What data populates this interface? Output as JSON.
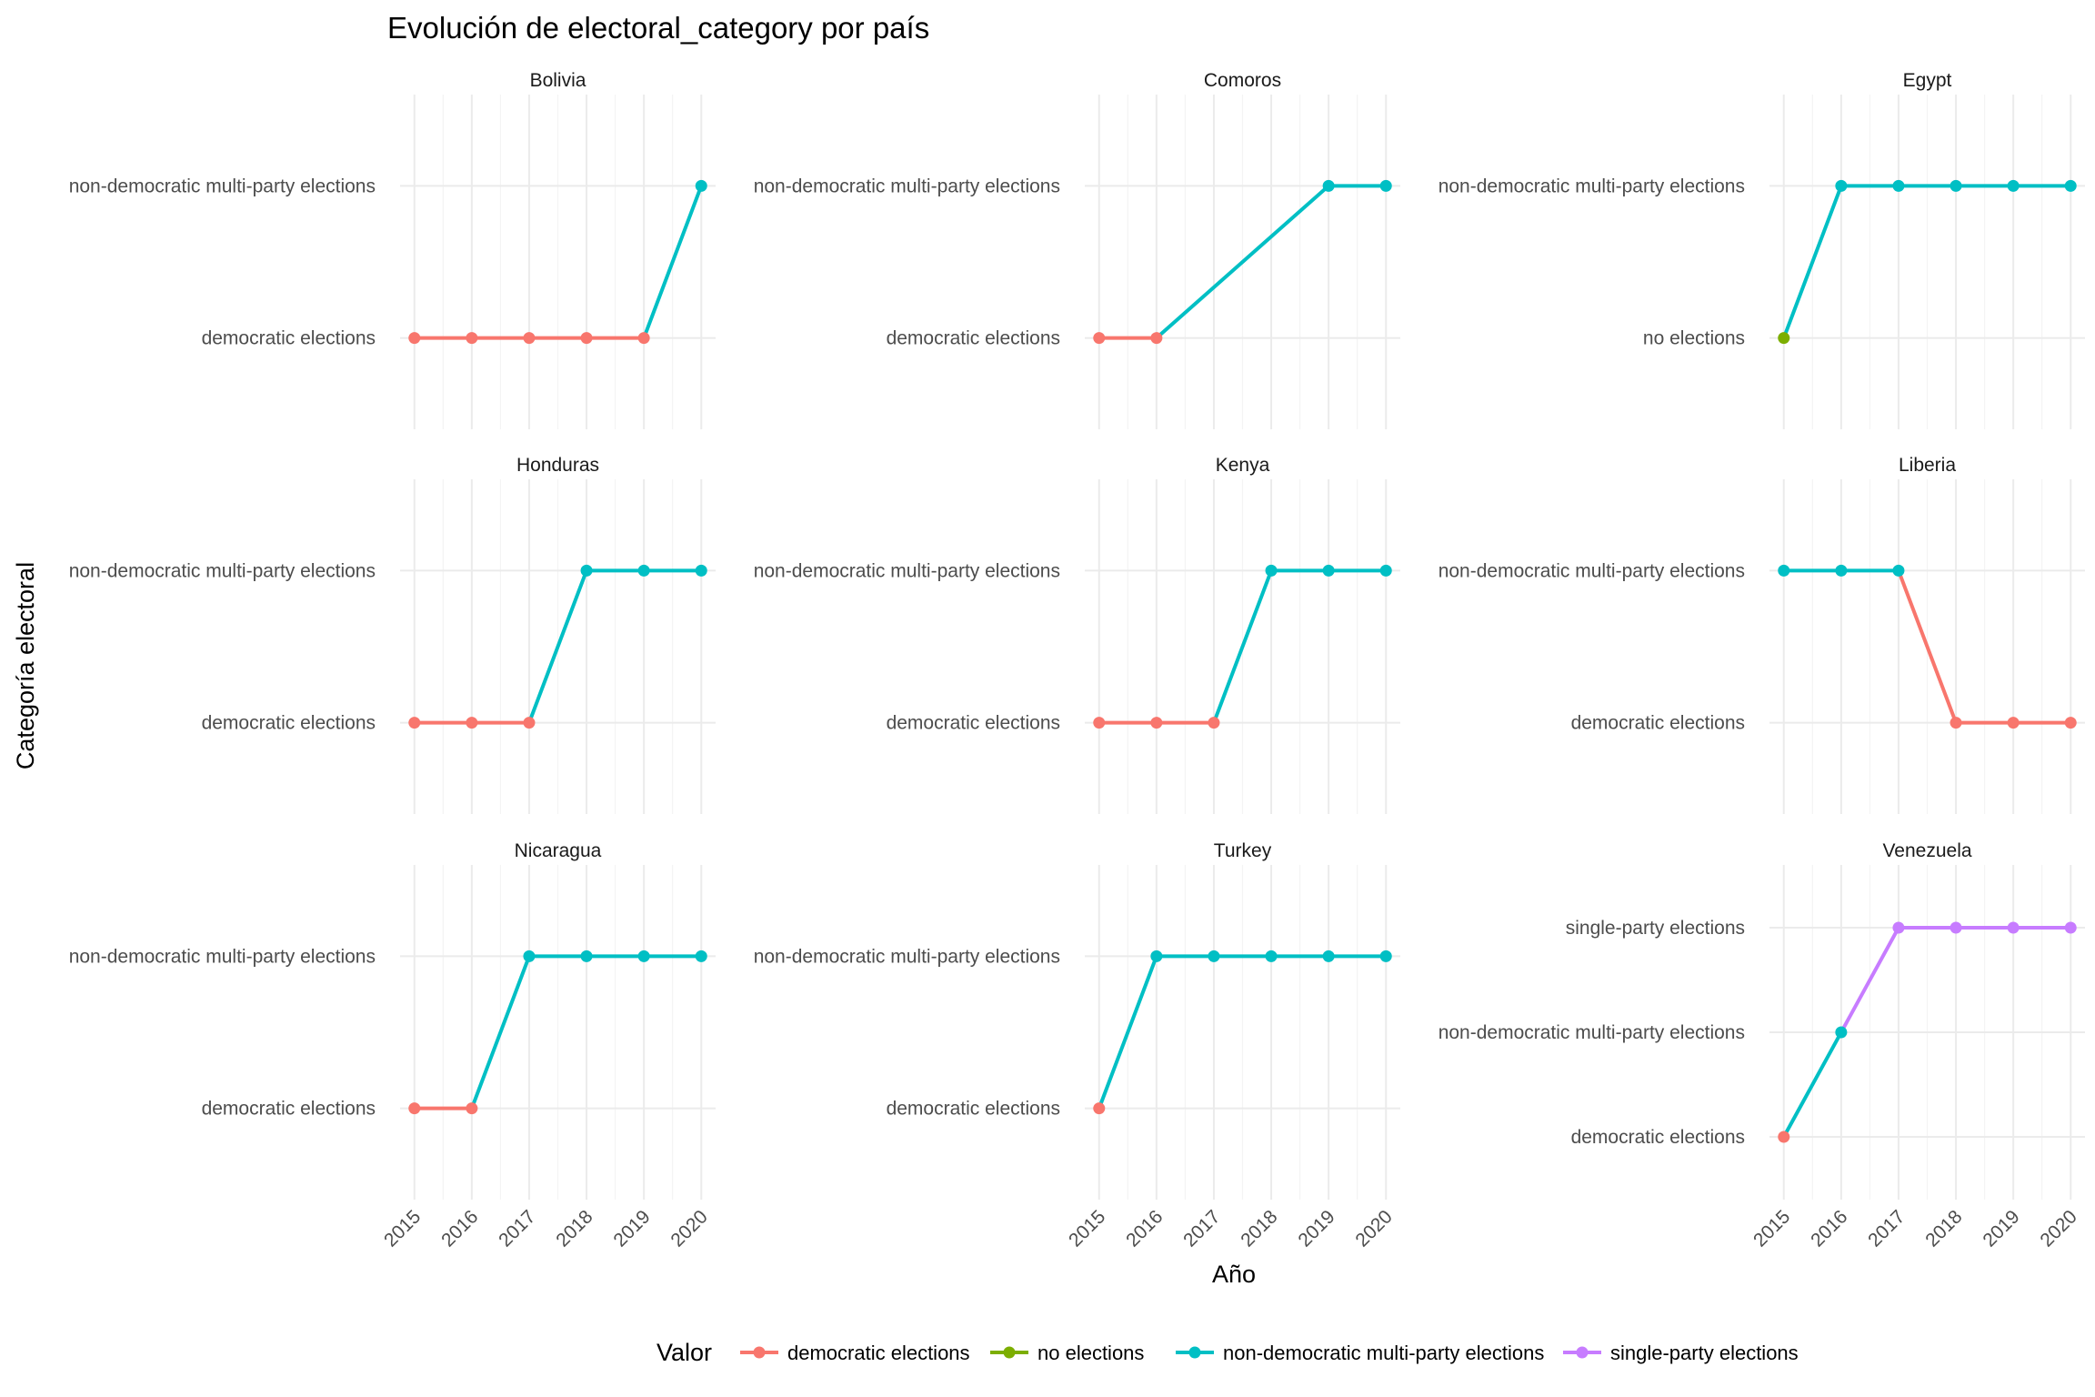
{
  "chart_data": {
    "type": "line",
    "title": "Evolución de electoral_category por país",
    "xlabel": "Año",
    "ylabel": "Categoría electoral",
    "x": [
      2015,
      2016,
      2017,
      2018,
      2019,
      2020
    ],
    "grid": true,
    "legend": {
      "title": "Valor",
      "position": "bottom",
      "entries": [
        {
          "label": "democratic elections",
          "color": "#F8766D"
        },
        {
          "label": "no elections",
          "color": "#7CAE00"
        },
        {
          "label": "non-democratic multi-party elections",
          "color": "#00BFC4"
        },
        {
          "label": "single-party elections",
          "color": "#C77CFF"
        }
      ]
    },
    "panels": [
      {
        "country": "Bolivia",
        "categories": [
          "democratic elections",
          "non-democratic multi-party elections"
        ],
        "values": [
          "democratic elections",
          "democratic elections",
          "democratic elections",
          "democratic elections",
          "democratic elections",
          "non-democratic multi-party elections"
        ]
      },
      {
        "country": "Comoros",
        "categories": [
          "democratic elections",
          "non-democratic multi-party elections"
        ],
        "years": [
          2015,
          2016,
          2019,
          2020
        ],
        "values": [
          "democratic elections",
          "democratic elections",
          "non-democratic multi-party elections",
          "non-democratic multi-party elections"
        ]
      },
      {
        "country": "Egypt",
        "categories": [
          "no elections",
          "non-democratic multi-party elections"
        ],
        "values": [
          "no elections",
          "non-democratic multi-party elections",
          "non-democratic multi-party elections",
          "non-democratic multi-party elections",
          "non-democratic multi-party elections",
          "non-democratic multi-party elections"
        ]
      },
      {
        "country": "Honduras",
        "categories": [
          "democratic elections",
          "non-democratic multi-party elections"
        ],
        "values": [
          "democratic elections",
          "democratic elections",
          "democratic elections",
          "non-democratic multi-party elections",
          "non-democratic multi-party elections",
          "non-democratic multi-party elections"
        ]
      },
      {
        "country": "Kenya",
        "categories": [
          "democratic elections",
          "non-democratic multi-party elections"
        ],
        "values": [
          "democratic elections",
          "democratic elections",
          "democratic elections",
          "non-democratic multi-party elections",
          "non-democratic multi-party elections",
          "non-democratic multi-party elections"
        ]
      },
      {
        "country": "Liberia",
        "categories": [
          "democratic elections",
          "non-democratic multi-party elections"
        ],
        "values": [
          "non-democratic multi-party elections",
          "non-democratic multi-party elections",
          "non-democratic multi-party elections",
          "democratic elections",
          "democratic elections",
          "democratic elections"
        ]
      },
      {
        "country": "Nicaragua",
        "categories": [
          "democratic elections",
          "non-democratic multi-party elections"
        ],
        "values": [
          "democratic elections",
          "democratic elections",
          "non-democratic multi-party elections",
          "non-democratic multi-party elections",
          "non-democratic multi-party elections",
          "non-democratic multi-party elections"
        ]
      },
      {
        "country": "Turkey",
        "categories": [
          "democratic elections",
          "non-democratic multi-party elections"
        ],
        "values": [
          "democratic elections",
          "non-democratic multi-party elections",
          "non-democratic multi-party elections",
          "non-democratic multi-party elections",
          "non-democratic multi-party elections",
          "non-democratic multi-party elections"
        ]
      },
      {
        "country": "Venezuela",
        "categories": [
          "democratic elections",
          "non-democratic multi-party elections",
          "single-party elections"
        ],
        "values": [
          "democratic elections",
          "non-democratic multi-party elections",
          "single-party elections",
          "single-party elections",
          "single-party elections",
          "single-party elections"
        ]
      }
    ]
  }
}
